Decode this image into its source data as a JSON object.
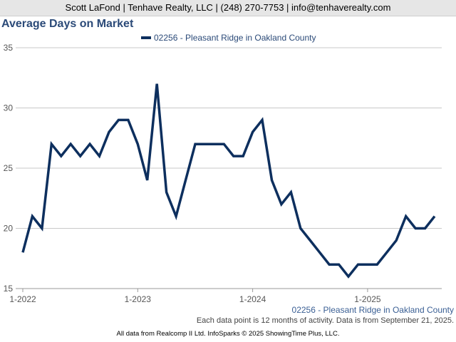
{
  "header": {
    "contact": "Scott LaFond | Tenhave Realty, LLC | (248) 270-7753 | info@tenhaverealty.com"
  },
  "footer": {
    "note": "Each data point is 12 months of activity. Data is from September 21, 2025.",
    "source": "All data from Realcomp II Ltd. InfoSparks © 2025 ShowingTime Plus, LLC."
  },
  "colors": {
    "series": "#0d2f5e",
    "title": "#2b4a78",
    "grid": "#c8c8c8"
  },
  "chart_data": {
    "type": "line",
    "title": "Average Days on Market",
    "xlabel": "",
    "ylabel": "",
    "ylim": [
      15,
      35
    ],
    "yticks": [
      15,
      20,
      25,
      30,
      35
    ],
    "xticks": [
      {
        "label": "1-2022",
        "date": "2022-01"
      },
      {
        "label": "1-2023",
        "date": "2023-01"
      },
      {
        "label": "1-2024",
        "date": "2024-01"
      },
      {
        "label": "1-2025",
        "date": "2025-01"
      }
    ],
    "grid": true,
    "legend": "top-center",
    "series_label_bottom": "02256 - Pleasant Ridge in Oakland County",
    "series": [
      {
        "name": "02256 - Pleasant Ridge in Oakland County",
        "x": [
          "2022-01",
          "2022-02",
          "2022-03",
          "2022-04",
          "2022-05",
          "2022-06",
          "2022-07",
          "2022-08",
          "2022-09",
          "2022-10",
          "2022-11",
          "2022-12",
          "2023-01",
          "2023-02",
          "2023-03",
          "2023-04",
          "2023-05",
          "2023-06",
          "2023-07",
          "2023-08",
          "2023-09",
          "2023-10",
          "2023-11",
          "2023-12",
          "2024-01",
          "2024-02",
          "2024-03",
          "2024-04",
          "2024-05",
          "2024-06",
          "2024-07",
          "2024-08",
          "2024-09",
          "2024-10",
          "2024-11",
          "2024-12",
          "2025-01",
          "2025-02",
          "2025-03",
          "2025-04",
          "2025-05",
          "2025-06",
          "2025-07",
          "2025-08"
        ],
        "values": [
          18,
          21,
          20,
          27,
          26,
          27,
          26,
          27,
          26,
          28,
          29,
          29,
          27,
          24,
          32,
          23,
          21,
          24,
          27,
          27,
          27,
          27,
          26,
          26,
          28,
          29,
          24,
          22,
          23,
          20,
          19,
          18,
          17,
          17,
          16,
          17,
          17,
          17,
          18,
          19,
          21,
          20,
          20,
          21
        ]
      }
    ]
  }
}
